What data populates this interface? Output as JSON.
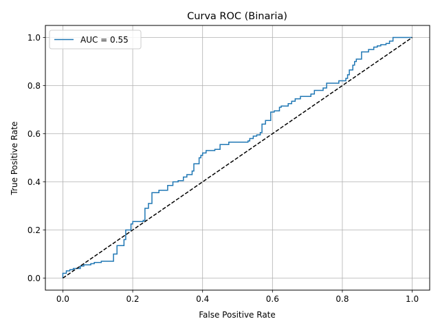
{
  "chart_data": {
    "type": "line",
    "title": "Curva ROC (Binaria)",
    "xlabel": "False Positive Rate",
    "ylabel": "True Positive Rate",
    "xlim": [
      -0.05,
      1.05
    ],
    "ylim": [
      -0.05,
      1.05
    ],
    "xticks": [
      0.0,
      0.2,
      0.4,
      0.6,
      0.8,
      1.0
    ],
    "yticks": [
      0.0,
      0.2,
      0.4,
      0.6,
      0.8,
      1.0
    ],
    "xtick_labels": [
      "0.0",
      "0.2",
      "0.4",
      "0.6",
      "0.8",
      "1.0"
    ],
    "ytick_labels": [
      "0.0",
      "0.2",
      "0.4",
      "0.6",
      "0.8",
      "1.0"
    ],
    "grid": true,
    "legend_position": "upper-left",
    "series": [
      {
        "name": "AUC = 0.55",
        "color": "#1f77b4",
        "style": "solid",
        "x": [
          0.0,
          0.0,
          0.01,
          0.01,
          0.02,
          0.02,
          0.03,
          0.03,
          0.05,
          0.05,
          0.06,
          0.06,
          0.08,
          0.08,
          0.09,
          0.09,
          0.11,
          0.11,
          0.145,
          0.145,
          0.155,
          0.155,
          0.175,
          0.175,
          0.18,
          0.18,
          0.195,
          0.195,
          0.2,
          0.2,
          0.23,
          0.23,
          0.235,
          0.235,
          0.245,
          0.245,
          0.255,
          0.255,
          0.275,
          0.275,
          0.3,
          0.3,
          0.315,
          0.315,
          0.33,
          0.33,
          0.345,
          0.345,
          0.355,
          0.355,
          0.37,
          0.37,
          0.375,
          0.375,
          0.39,
          0.39,
          0.395,
          0.395,
          0.4,
          0.4,
          0.41,
          0.41,
          0.435,
          0.435,
          0.45,
          0.45,
          0.475,
          0.475,
          0.53,
          0.53,
          0.535,
          0.535,
          0.545,
          0.545,
          0.555,
          0.555,
          0.565,
          0.565,
          0.57,
          0.57,
          0.58,
          0.58,
          0.595,
          0.595,
          0.605,
          0.605,
          0.62,
          0.62,
          0.625,
          0.625,
          0.645,
          0.645,
          0.655,
          0.655,
          0.665,
          0.665,
          0.68,
          0.68,
          0.71,
          0.71,
          0.72,
          0.72,
          0.745,
          0.745,
          0.755,
          0.755,
          0.79,
          0.79,
          0.81,
          0.81,
          0.815,
          0.815,
          0.82,
          0.82,
          0.83,
          0.83,
          0.835,
          0.835,
          0.84,
          0.84,
          0.855,
          0.855,
          0.875,
          0.875,
          0.89,
          0.89,
          0.9,
          0.9,
          0.91,
          0.91,
          0.925,
          0.925,
          0.935,
          0.935,
          0.945,
          0.945,
          1.0
        ],
        "y": [
          0.0,
          0.02,
          0.02,
          0.03,
          0.03,
          0.035,
          0.035,
          0.04,
          0.04,
          0.05,
          0.05,
          0.055,
          0.055,
          0.06,
          0.06,
          0.065,
          0.065,
          0.07,
          0.07,
          0.1,
          0.1,
          0.135,
          0.135,
          0.16,
          0.16,
          0.2,
          0.2,
          0.225,
          0.225,
          0.235,
          0.235,
          0.24,
          0.24,
          0.29,
          0.29,
          0.31,
          0.31,
          0.355,
          0.355,
          0.365,
          0.365,
          0.385,
          0.385,
          0.4,
          0.4,
          0.405,
          0.405,
          0.42,
          0.42,
          0.43,
          0.43,
          0.445,
          0.445,
          0.475,
          0.475,
          0.5,
          0.5,
          0.51,
          0.51,
          0.52,
          0.52,
          0.53,
          0.53,
          0.535,
          0.535,
          0.555,
          0.555,
          0.565,
          0.565,
          0.57,
          0.57,
          0.58,
          0.58,
          0.59,
          0.59,
          0.595,
          0.595,
          0.605,
          0.605,
          0.64,
          0.64,
          0.655,
          0.655,
          0.69,
          0.69,
          0.695,
          0.695,
          0.71,
          0.71,
          0.715,
          0.715,
          0.725,
          0.725,
          0.735,
          0.735,
          0.745,
          0.745,
          0.755,
          0.755,
          0.765,
          0.765,
          0.78,
          0.78,
          0.79,
          0.79,
          0.81,
          0.81,
          0.82,
          0.82,
          0.83,
          0.83,
          0.845,
          0.845,
          0.865,
          0.865,
          0.885,
          0.885,
          0.9,
          0.9,
          0.91,
          0.91,
          0.94,
          0.94,
          0.95,
          0.95,
          0.96,
          0.96,
          0.965,
          0.965,
          0.97,
          0.97,
          0.975,
          0.975,
          0.985,
          0.985,
          1.0,
          1.0
        ]
      },
      {
        "name": "",
        "color": "#000000",
        "style": "dashed",
        "x": [
          0.0,
          1.0
        ],
        "y": [
          0.0,
          1.0
        ]
      }
    ]
  }
}
